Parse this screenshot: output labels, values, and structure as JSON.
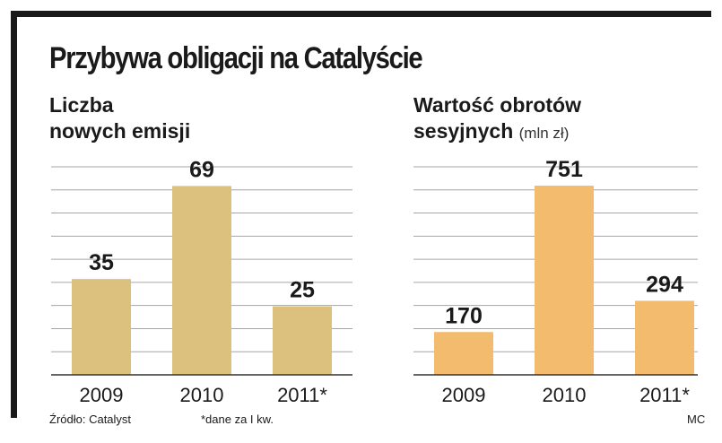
{
  "title": "Przybywa obligacji na Catalyście",
  "chart_data": [
    {
      "type": "bar",
      "title_lines": [
        "Liczba",
        "nowych emisji"
      ],
      "unit": "",
      "categories": [
        "2009",
        "2010",
        "2011*"
      ],
      "values": [
        35,
        69,
        25
      ],
      "ylim": [
        0,
        76
      ],
      "color": "#dcc07e"
    },
    {
      "type": "bar",
      "title_lines": [
        "Wartość obrotów",
        "sesyjnych"
      ],
      "unit": "(mln zł)",
      "categories": [
        "2009",
        "2010",
        "2011*"
      ],
      "values": [
        170,
        751,
        294
      ],
      "ylim": [
        0,
        826
      ],
      "color": "#f2bb6e"
    }
  ],
  "footer": {
    "source": "Źródło: Catalyst",
    "note": "*dane za I kw.",
    "author": "MC"
  }
}
